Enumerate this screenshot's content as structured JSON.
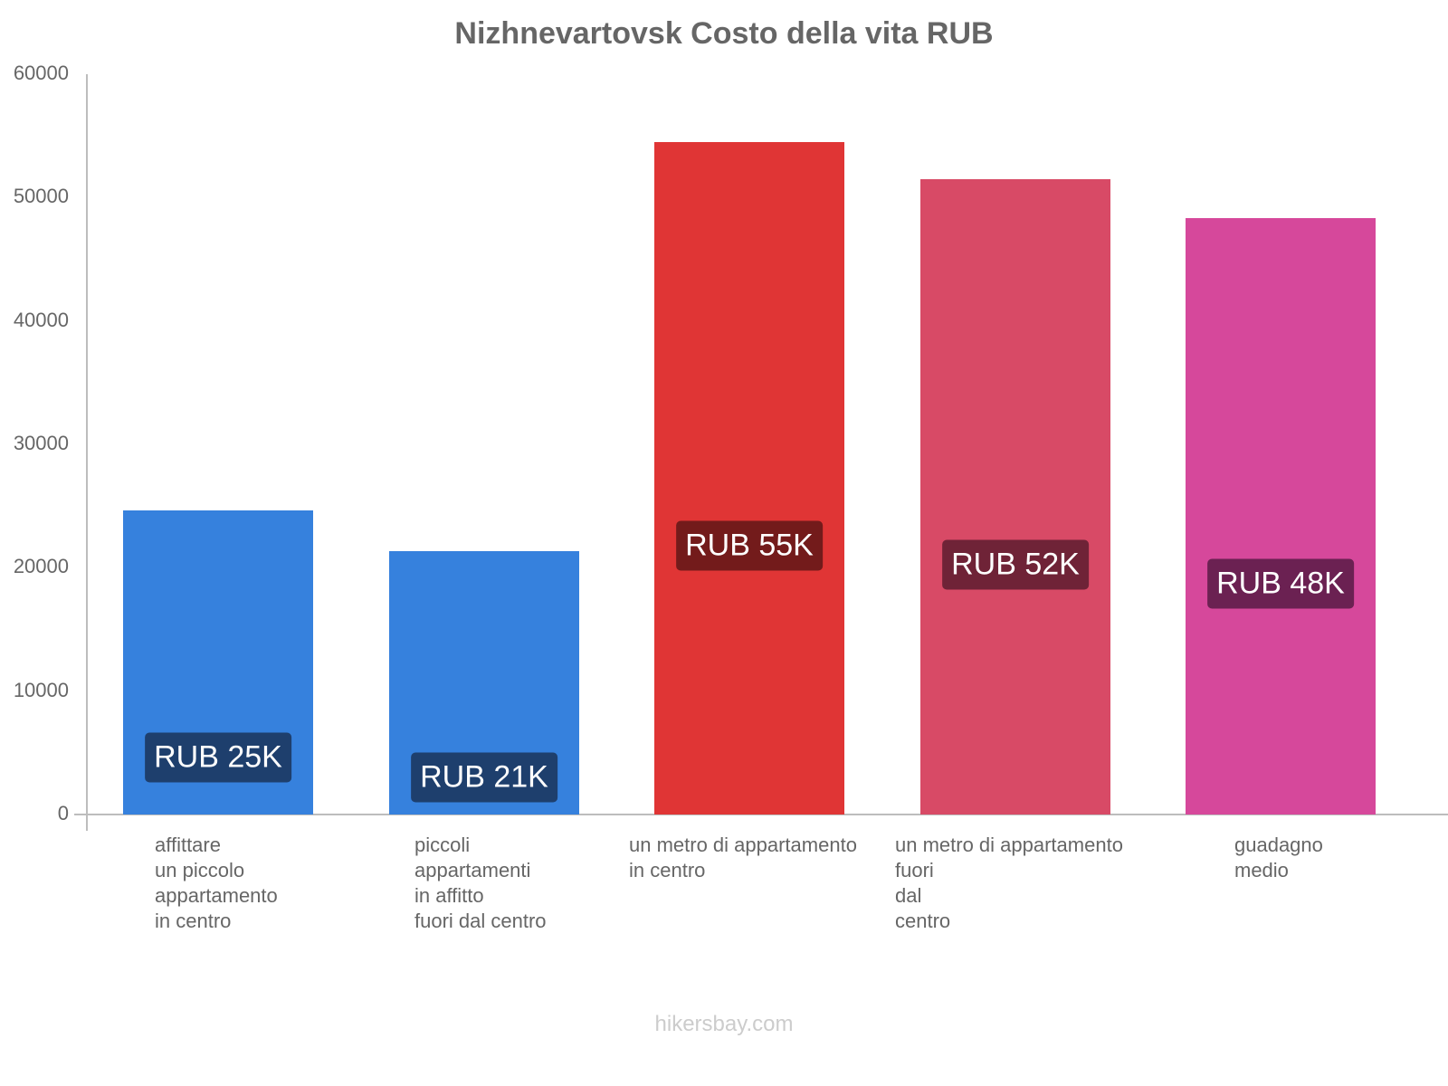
{
  "chart_data": {
    "type": "bar",
    "title": "Nizhnevartovsk Costo della vita RUB",
    "xlabel": "",
    "ylabel": "",
    "ylim": [
      0,
      60000
    ],
    "yticks": [
      "0",
      "10000",
      "20000",
      "30000",
      "40000",
      "50000",
      "60000"
    ],
    "grid": false,
    "legend": null,
    "categories": [
      "affittare un piccolo appartamento in centro",
      "piccoli appartamenti in affitto fuori dal centro",
      "un metro di appartamento in centro",
      "un metro di appartamento fuori dal centro",
      "guadagno medio"
    ],
    "values": [
      24650,
      21350,
      54500,
      51500,
      48350
    ],
    "data_labels": [
      "RUB 25K",
      "RUB 21K",
      "RUB 55K",
      "RUB 52K",
      "RUB 48K"
    ],
    "colors": [
      "#3681dd",
      "#3681dd",
      "#e03535",
      "#d84a66",
      "#d6489b"
    ],
    "label_bg_colors": [
      "#1e3f6d",
      "#1e3f6d",
      "#731b1b",
      "#6f2337",
      "#6b2152"
    ]
  },
  "title": "Nizhnevartovsk Costo della vita RUB",
  "yticks": [
    "0",
    "10000",
    "20000",
    "30000",
    "40000",
    "50000",
    "60000"
  ],
  "xlabels": [
    "affittare\nun piccolo\nappartamento\nin centro",
    "piccoli\nappartamenti\nin affitto\nfuori dal centro",
    "un metro di appartamento\nin centro",
    "un metro di appartamento\nfuori\ndal\ncentro",
    "guadagno\nmedio"
  ],
  "bar_labels": [
    "RUB 25K",
    "RUB 21K",
    "RUB 55K",
    "RUB 52K",
    "RUB 48K"
  ],
  "footer": "hikersbay.com"
}
